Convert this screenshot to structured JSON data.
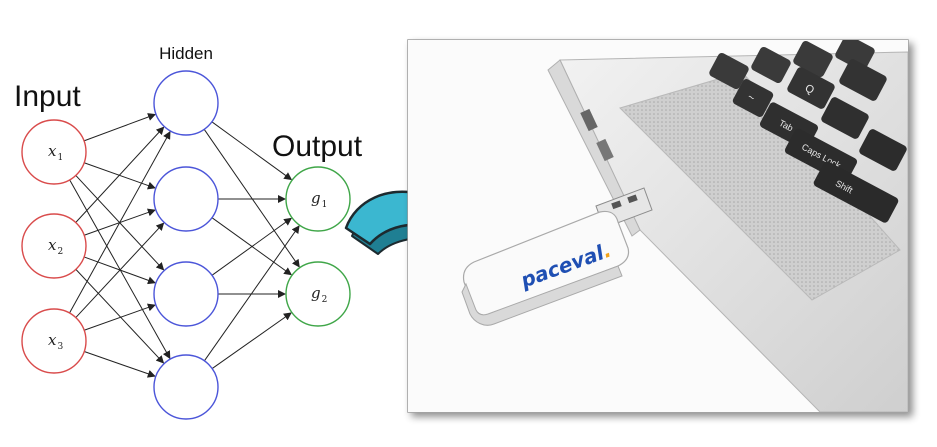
{
  "network": {
    "layers": [
      {
        "label": "Input"
      },
      {
        "label": "Hidden"
      },
      {
        "label": "Output"
      }
    ],
    "inputs": [
      {
        "base": "x",
        "sub": "1"
      },
      {
        "base": "x",
        "sub": "2"
      },
      {
        "base": "x",
        "sub": "3"
      }
    ],
    "hidden_count": 4,
    "outputs": [
      {
        "base": "g",
        "sub": "1"
      },
      {
        "base": "g",
        "sub": "2"
      }
    ],
    "colors": {
      "input": "#d94b4b",
      "hidden": "#4b55d9",
      "output": "#3fa648",
      "edge": "#222222"
    }
  },
  "arrow": {
    "color": "#3bb7d0",
    "outline": "#1d2a2f"
  },
  "photo": {
    "usb_brand": "paceval",
    "usb_brand_dot": ".",
    "brand_color": "#1f4fb3",
    "brand_dot_color": "#f2a31b",
    "keys": [
      "Tab",
      "Caps Lock",
      "Shift",
      "Q",
      "~"
    ]
  }
}
